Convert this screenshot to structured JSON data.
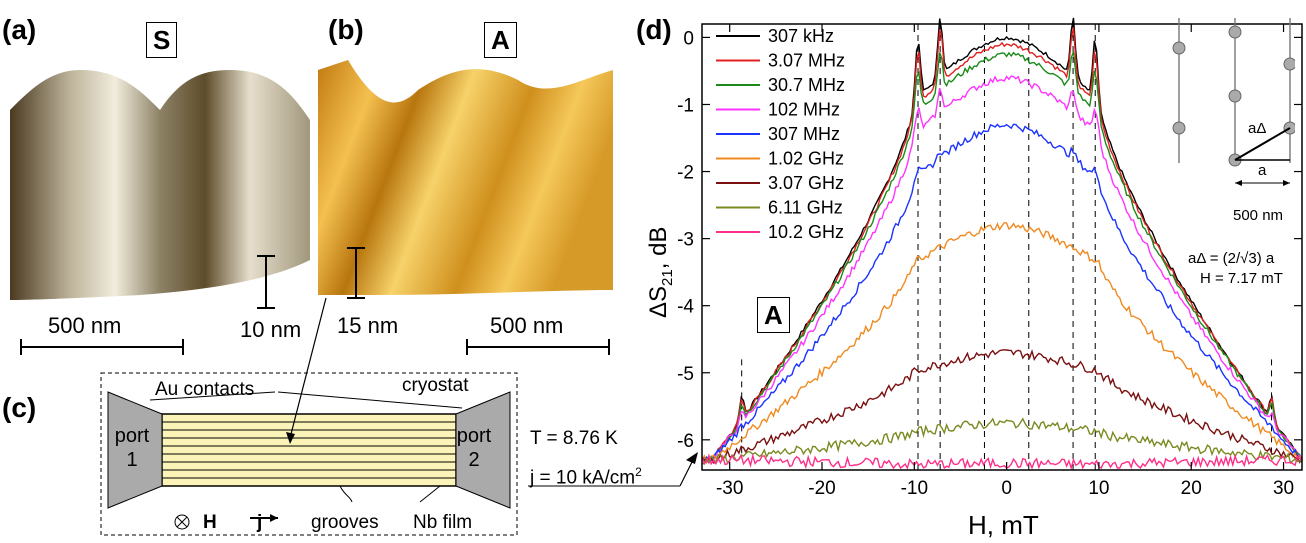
{
  "panels": {
    "a": {
      "label": "(a)",
      "tag": "S",
      "scale": "500 nm",
      "height_bar": "10 nm"
    },
    "b": {
      "label": "(b)",
      "tag": "A",
      "scale": "500 nm",
      "height_bar": "15 nm"
    },
    "c": {
      "label": "(c)",
      "cryostat": "cryostat",
      "contacts": "Au contacts",
      "port1": [
        "port",
        "1"
      ],
      "port2": [
        "port",
        "2"
      ],
      "field": "H",
      "current": "j",
      "grooves": "grooves",
      "film": "Nb film",
      "temperature": "T = 8.76 K",
      "current_density": "j = 10 kA/cm",
      "current_density_exp": "2"
    },
    "d": {
      "label": "(d)",
      "tag": "A"
    }
  },
  "inset": {
    "a_delta": "aΔ",
    "a": "a",
    "scale": "500 nm",
    "formula": "aΔ = (2/√3) a",
    "field": "H = 7.17 mT"
  },
  "chart_data": {
    "type": "line",
    "xlabel": "H, mT",
    "ylabel": "ΔS21, dB",
    "ylabel_main": "ΔS",
    "ylabel_sub": "21",
    "ylabel_unit": ", dB",
    "xlim": [
      -33,
      32
    ],
    "ylim": [
      -6.45,
      0.2
    ],
    "x_ticks": [
      -30,
      -20,
      -10,
      0,
      10,
      20,
      30
    ],
    "y_ticks": [
      0,
      -1,
      -2,
      -3,
      -4,
      -5,
      -6
    ],
    "matching_fields": [
      -28.7,
      -9.6,
      -7.2,
      -2.4,
      2.4,
      7.2,
      9.6,
      28.7
    ],
    "legend_position": "top-left",
    "series": [
      {
        "name": "307 kHz",
        "color": "#000000",
        "peak": 0.0,
        "shoulder": -1.4,
        "spike": 0.9
      },
      {
        "name": "3.07 MHz",
        "color": "#e02020",
        "peak": -0.1,
        "shoulder": -1.45,
        "spike": 0.8
      },
      {
        "name": "30.7 MHz",
        "color": "#1a8a1a",
        "peak": -0.25,
        "shoulder": -1.55,
        "spike": 0.6
      },
      {
        "name": "102 MHz",
        "color": "#ff33ff",
        "peak": -0.6,
        "shoulder": -1.85,
        "spike": 0.35
      },
      {
        "name": "307 MHz",
        "color": "#1a33ff",
        "peak": -1.3,
        "shoulder": -2.5,
        "spike": 0.1
      },
      {
        "name": "1.02 GHz",
        "color": "#f08a20",
        "peak": -2.8,
        "shoulder": -3.6,
        "spike": 0.0
      },
      {
        "name": "3.07 GHz",
        "color": "#7a1010",
        "peak": -4.7,
        "shoulder": -5.1,
        "spike": 0.0
      },
      {
        "name": "6.11 GHz",
        "color": "#7a8a20",
        "peak": -5.75,
        "shoulder": -5.95,
        "spike": 0.0
      },
      {
        "name": "10.2 GHz",
        "color": "#ff2e8a",
        "peak": -6.35,
        "shoulder": -6.38,
        "spike": 0.0
      }
    ],
    "baseline": -6.3
  }
}
